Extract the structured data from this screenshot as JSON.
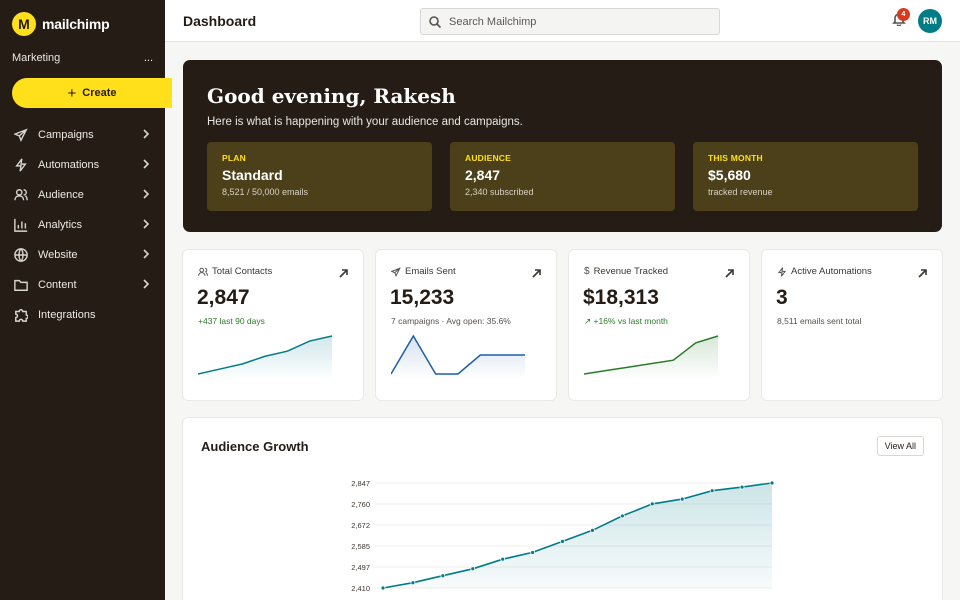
{
  "brand": {
    "logo_letter": "M",
    "name": "mailchimp"
  },
  "sidebar": {
    "workspace": "Marketing",
    "workspace_more": "...",
    "create_label": "Create",
    "items": [
      {
        "label": "Campaigns",
        "icon": "send-icon"
      },
      {
        "label": "Automations",
        "icon": "bolt-icon"
      },
      {
        "label": "Audience",
        "icon": "users-icon"
      },
      {
        "label": "Analytics",
        "icon": "bar-chart-icon"
      },
      {
        "label": "Website",
        "icon": "globe-icon"
      },
      {
        "label": "Content",
        "icon": "folder-icon"
      },
      {
        "label": "Integrations",
        "icon": "puzzle-icon"
      }
    ]
  },
  "header": {
    "title": "Dashboard",
    "search_placeholder": "Search Mailchimp",
    "notification_count": "4",
    "avatar_initials": "RM"
  },
  "hero": {
    "greeting": "Good evening, Rakesh",
    "subtitle": "Here is what is happening with your audience and campaigns.",
    "stats": [
      {
        "label": "PLAN",
        "value": "Standard",
        "note": "8,521 / 50,000 emails"
      },
      {
        "label": "AUDIENCE",
        "value": "2,847",
        "note": "2,340 subscribed"
      },
      {
        "label": "THIS MONTH",
        "value": "$5,680",
        "note": "tracked revenue"
      }
    ]
  },
  "metrics": [
    {
      "title": "Total Contacts",
      "value": "2,847",
      "note": "+437 last 90 days",
      "icon": "users-icon",
      "spark": [
        0,
        2,
        4,
        7,
        9,
        13,
        15
      ]
    },
    {
      "title": "Emails Sent",
      "value": "15,233",
      "note": "7 campaigns · Avg open: 35.6%",
      "icon": "send-icon",
      "spark": [
        2,
        8,
        2,
        2,
        5,
        5,
        5
      ]
    },
    {
      "title": "Revenue Tracked",
      "value": "$18,313",
      "note": "+16% vs last month",
      "icon": "dollar-icon",
      "spark": [
        1,
        2,
        3,
        4,
        5,
        10,
        12
      ]
    },
    {
      "title": "Active Automations",
      "value": "3",
      "note": "8,511 emails sent total",
      "icon": "bolt-icon",
      "spark": []
    }
  ],
  "colors": {
    "accent": "#ffe01b",
    "dark": "#241c15",
    "teal": "#007c89",
    "blue": "#1f5fa8",
    "green": "#2b7a2b"
  },
  "growth": {
    "title": "Audience Growth",
    "view_all_label": "View All"
  },
  "chart_data": {
    "type": "area",
    "title": "Audience Growth",
    "y_ticks": [
      "2,847",
      "2,760",
      "2,672",
      "2,585",
      "2,497",
      "2,410"
    ],
    "ylim": [
      2410,
      2847
    ],
    "values": [
      2410,
      2432,
      2461,
      2490,
      2530,
      2558,
      2604,
      2650,
      2710,
      2760,
      2780,
      2815,
      2830,
      2847
    ],
    "grid": true
  }
}
